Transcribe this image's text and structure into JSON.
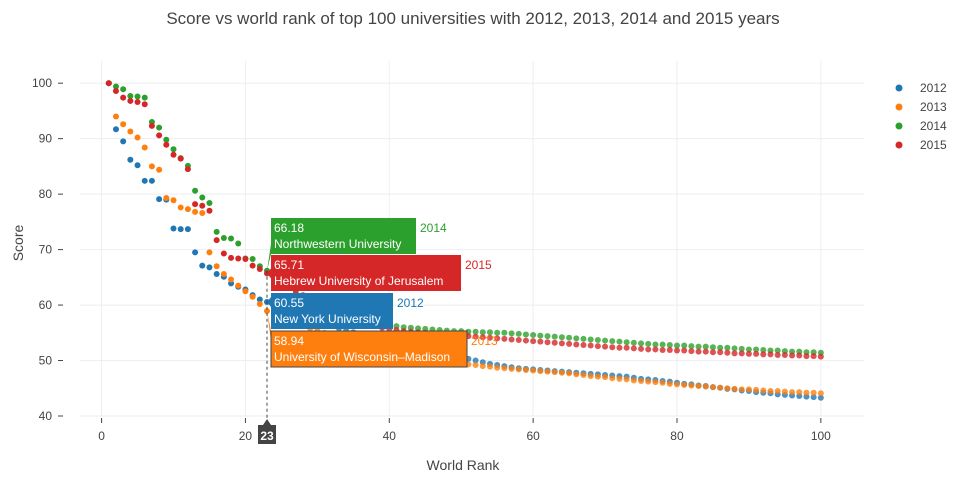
{
  "chart_data": {
    "type": "scatter",
    "title": "Score vs world rank of top 100 universities with 2012, 2013, 2014 and 2015 years",
    "xlabel": "World Rank",
    "ylabel": "Score",
    "xlim": [
      -3,
      106
    ],
    "ylim": [
      40,
      104
    ],
    "xticks": [
      0,
      20,
      40,
      60,
      80,
      100
    ],
    "yticks": [
      40,
      50,
      60,
      70,
      80,
      90,
      100
    ],
    "grid": true,
    "legend_position": "top-right",
    "hover": {
      "x_label": "23",
      "labels": [
        {
          "series": "2014",
          "value": "66.18",
          "name": "Northwestern University",
          "color": "#2ca02c",
          "y": 66.18
        },
        {
          "series": "2015",
          "value": "65.71",
          "name": "Hebrew University of Jerusalem",
          "color": "#d62728",
          "y": 65.71
        },
        {
          "series": "2012",
          "value": "60.55",
          "name": "New York University",
          "color": "#1f77b4",
          "y": 60.55
        },
        {
          "series": "2013",
          "value": "58.94",
          "name": "University of Wisconsin–Madison",
          "color": "#ff7f0e",
          "y": 58.94
        }
      ]
    },
    "series": [
      {
        "name": "2012",
        "color": "#1f77b4",
        "values": [
          100,
          91.7,
          89.5,
          86.2,
          85.2,
          82.4,
          82.4,
          79.1,
          79,
          73.8,
          73.7,
          73.7,
          69.5,
          67.1,
          66.8,
          65.6,
          65.1,
          63.9,
          63.3,
          62.8,
          61.8,
          61.0,
          60.55,
          59.8,
          59.3,
          58.8,
          58.3,
          57.9,
          57.4,
          57.0,
          56.6,
          56.2,
          55.8,
          55.4,
          55.1,
          54.8,
          54.5,
          54.2,
          53.9,
          53.6,
          53.3,
          53.0,
          52.7,
          52.4,
          52.1,
          51.8,
          51.5,
          51.2,
          50.9,
          50.6,
          50.3,
          50.0,
          49.7,
          49.4,
          49.2,
          49.0,
          48.8,
          48.6,
          48.5,
          48.4,
          48.3,
          48.2,
          48.1,
          48.0,
          47.9,
          47.8,
          47.7,
          47.6,
          47.5,
          47.4,
          47.3,
          47.2,
          47.1,
          46.9,
          46.7,
          46.6,
          46.5,
          46.3,
          46.2,
          46.0,
          45.8,
          45.7,
          45.5,
          45.4,
          45.2,
          45.1,
          44.9,
          44.8,
          44.6,
          44.5,
          44.3,
          44.2,
          44.1,
          43.9,
          43.8,
          43.7,
          43.6,
          43.5,
          43.4,
          43.3
        ]
      },
      {
        "name": "2013",
        "color": "#ff7f0e",
        "values": [
          100,
          94,
          92.6,
          91.3,
          90.2,
          88.4,
          85,
          84.4,
          79.3,
          78.9,
          77.6,
          77.3,
          76.8,
          76.6,
          69.5,
          67,
          65.6,
          64.6,
          63.5,
          62.5,
          61.5,
          60.2,
          58.94,
          58.3,
          57.7,
          57.2,
          56.7,
          56.2,
          55.8,
          55.4,
          55.0,
          54.6,
          54.2,
          53.8,
          53.4,
          53.1,
          52.7,
          52.4,
          52.1,
          51.8,
          51.6,
          51.3,
          51.0,
          50.8,
          50.5,
          50.3,
          50.1,
          49.9,
          49.7,
          49.5,
          49.3,
          49.2,
          49.0,
          48.9,
          48.7,
          48.6,
          48.5,
          48.4,
          48.3,
          48.2,
          48.1,
          48.0,
          47.9,
          47.8,
          47.7,
          47.5,
          47.4,
          47.2,
          47.1,
          47.0,
          46.8,
          46.7,
          46.6,
          46.4,
          46.3,
          46.2,
          46.1,
          46.0,
          45.8,
          45.7,
          45.6,
          45.5,
          45.4,
          45.3,
          45.2,
          45.1,
          45.0,
          44.9,
          44.8,
          44.8,
          44.7,
          44.6,
          44.5,
          44.5,
          44.4,
          44.3,
          44.3,
          44.2,
          44.2,
          44.1
        ]
      },
      {
        "name": "2014",
        "color": "#2ca02c",
        "values": [
          100,
          99.4,
          98.9,
          97.7,
          97.6,
          97.4,
          93,
          92,
          89.8,
          88.1,
          86.5,
          85.1,
          80.6,
          79.4,
          78.4,
          73.2,
          72.1,
          72,
          71.1,
          68.4,
          68.3,
          67.0,
          66.18,
          65.2,
          64.2,
          63.1,
          62.2,
          61.4,
          60.6,
          60.0,
          59.4,
          58.9,
          58.5,
          58.1,
          57.7,
          57.4,
          57.1,
          56.8,
          56.6,
          56.4,
          56.2,
          56.0,
          55.9,
          55.8,
          55.7,
          55.6,
          55.5,
          55.4,
          55.3,
          55.3,
          55.2,
          55.2,
          55.1,
          55.1,
          55.0,
          55.0,
          54.9,
          54.8,
          54.7,
          54.6,
          54.5,
          54.4,
          54.3,
          54.2,
          54.1,
          54.0,
          53.9,
          53.8,
          53.7,
          53.6,
          53.5,
          53.4,
          53.3,
          53.2,
          53.1,
          53.0,
          52.9,
          52.9,
          52.8,
          52.7,
          52.7,
          52.6,
          52.5,
          52.5,
          52.4,
          52.3,
          52.3,
          52.2,
          52.1,
          52.0,
          52.0,
          51.9,
          51.8,
          51.8,
          51.7,
          51.6,
          51.6,
          51.5,
          51.5,
          51.4
        ]
      },
      {
        "name": "2015",
        "color": "#d62728",
        "values": [
          100,
          98.6,
          97.4,
          96.8,
          96.6,
          96.2,
          92.3,
          90.6,
          88.9,
          87.1,
          86.4,
          84.5,
          78.2,
          77.9,
          77,
          71.7,
          69.3,
          68.5,
          68.4,
          68.3,
          67.1,
          66.5,
          65.71,
          64.8,
          64.1,
          63.4,
          62.6,
          61.8,
          61.0,
          60.2,
          59.5,
          58.8,
          58.2,
          57.7,
          57.2,
          56.8,
          56.5,
          56.2,
          55.9,
          55.7,
          55.5,
          55.3,
          55.2,
          55.1,
          55.0,
          54.9,
          54.8,
          54.7,
          54.6,
          54.5,
          54.4,
          54.3,
          54.2,
          54.1,
          54.0,
          53.9,
          53.8,
          53.7,
          53.6,
          53.5,
          53.4,
          53.3,
          53.2,
          53.1,
          53.0,
          52.9,
          52.8,
          52.7,
          52.6,
          52.5,
          52.4,
          52.3,
          52.3,
          52.2,
          52.1,
          52.0,
          52.0,
          51.9,
          51.9,
          51.8,
          51.8,
          51.7,
          51.6,
          51.6,
          51.5,
          51.5,
          51.4,
          51.3,
          51.3,
          51.2,
          51.2,
          51.1,
          51.1,
          51.0,
          51.0,
          50.9,
          50.9,
          50.8,
          50.8,
          50.7
        ]
      }
    ]
  }
}
